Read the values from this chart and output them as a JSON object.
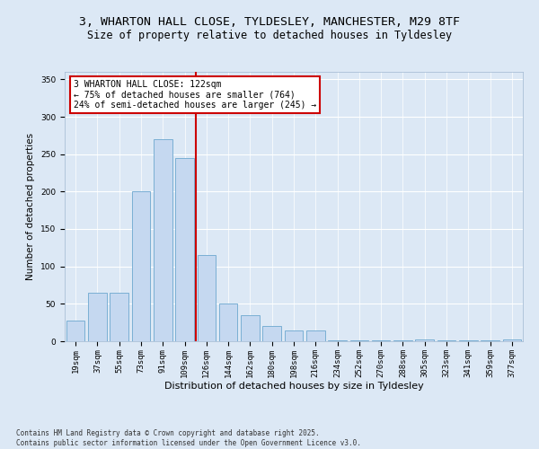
{
  "title_line1": "3, WHARTON HALL CLOSE, TYLDESLEY, MANCHESTER, M29 8TF",
  "title_line2": "Size of property relative to detached houses in Tyldesley",
  "xlabel": "Distribution of detached houses by size in Tyldesley",
  "ylabel": "Number of detached properties",
  "categories": [
    "19sqm",
    "37sqm",
    "55sqm",
    "73sqm",
    "91sqm",
    "109sqm",
    "126sqm",
    "144sqm",
    "162sqm",
    "180sqm",
    "198sqm",
    "216sqm",
    "234sqm",
    "252sqm",
    "270sqm",
    "288sqm",
    "305sqm",
    "323sqm",
    "341sqm",
    "359sqm",
    "377sqm"
  ],
  "values": [
    28,
    65,
    65,
    200,
    270,
    245,
    115,
    50,
    35,
    20,
    15,
    15,
    1,
    1,
    1,
    1,
    2,
    1,
    1,
    1,
    2
  ],
  "bar_color": "#c5d8f0",
  "bar_edge_color": "#7aafd4",
  "vline_x": 5.5,
  "vline_color": "#cc0000",
  "annotation_text": "3 WHARTON HALL CLOSE: 122sqm\n← 75% of detached houses are smaller (764)\n24% of semi-detached houses are larger (245) →",
  "annotation_box_color": "#ffffff",
  "annotation_box_edge": "#cc0000",
  "ylim": [
    0,
    360
  ],
  "yticks": [
    0,
    50,
    100,
    150,
    200,
    250,
    300,
    350
  ],
  "footnote": "Contains HM Land Registry data © Crown copyright and database right 2025.\nContains public sector information licensed under the Open Government Licence v3.0.",
  "background_color": "#dce8f5",
  "plot_bg_color": "#dce8f5",
  "title_fontsize": 9.5,
  "subtitle_fontsize": 8.5,
  "tick_fontsize": 6.5,
  "xlabel_fontsize": 8,
  "ylabel_fontsize": 7.5,
  "footnote_fontsize": 5.5,
  "annotation_fontsize": 7
}
